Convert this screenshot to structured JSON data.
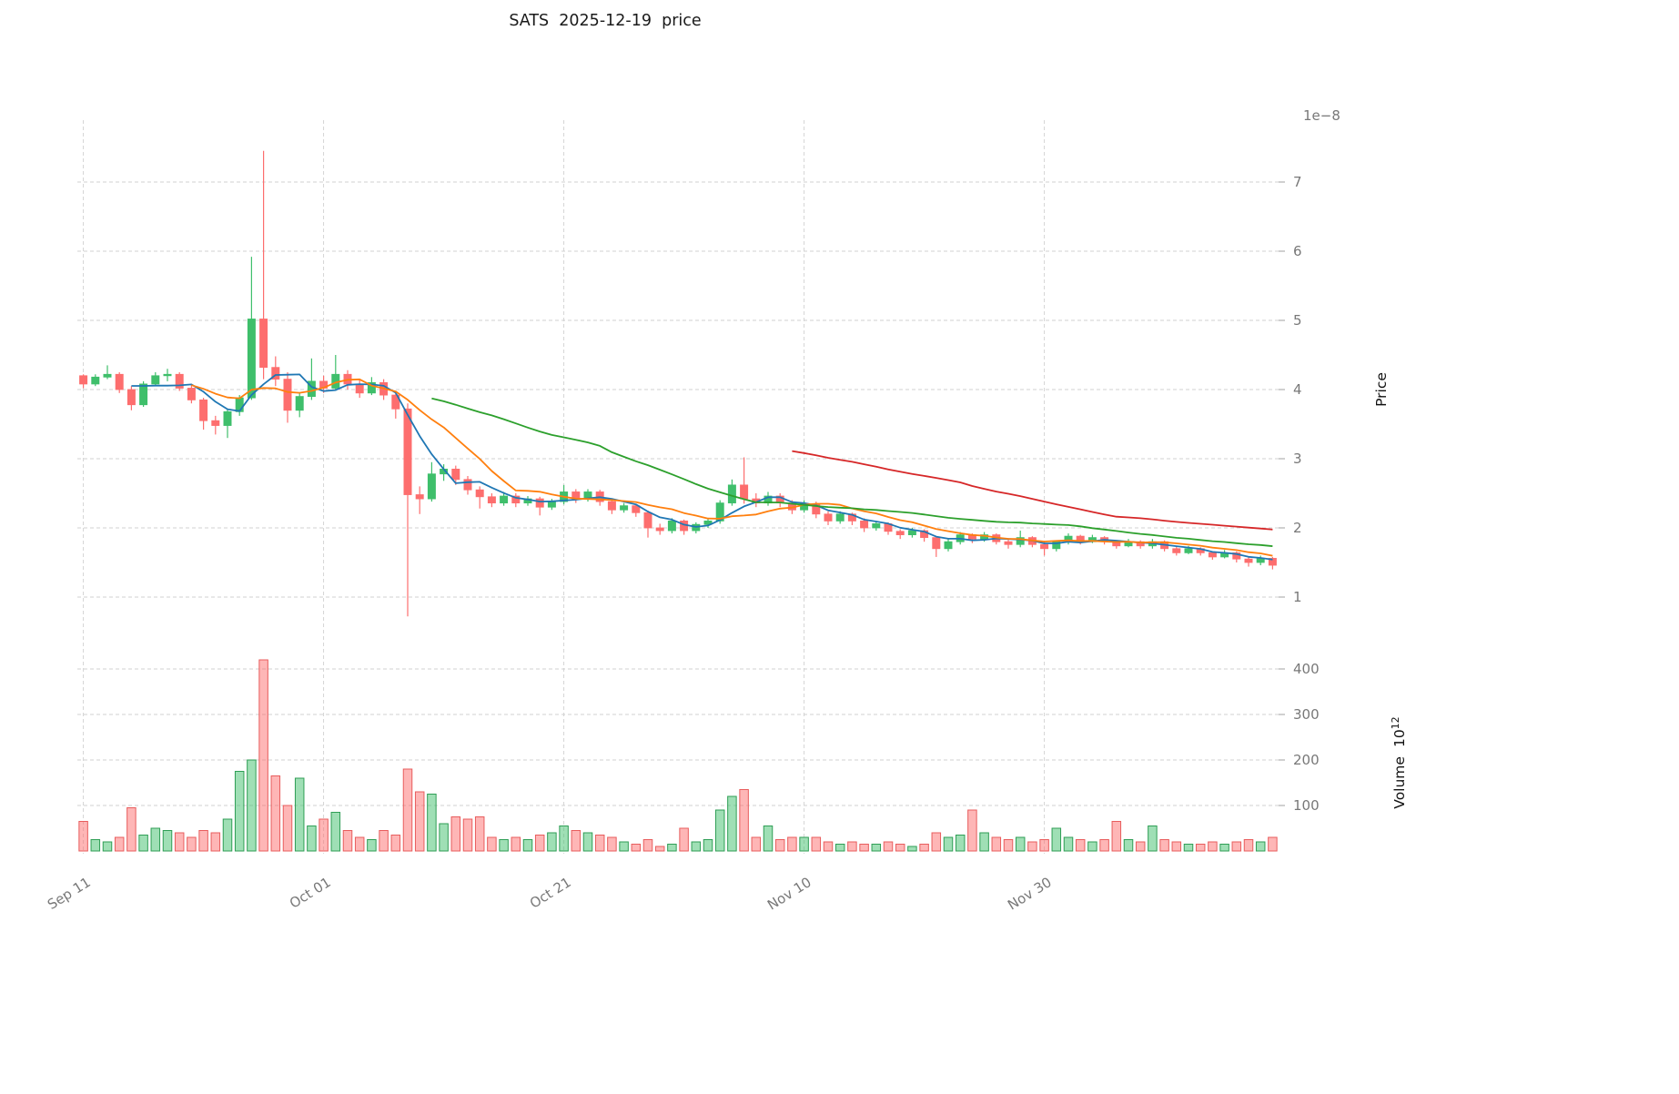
{
  "chart_data": {
    "type": "candlestick",
    "title": "SATS  2025-12-19  price",
    "price_axis": {
      "label": "Price",
      "offset_text": "1e−8",
      "scale": "1e-8",
      "ticks": [
        1,
        2,
        3,
        4,
        5,
        6,
        7
      ]
    },
    "volume_axis": {
      "label": "Volume",
      "unit_base": "10",
      "unit_exponent": "12",
      "ticks": [
        100,
        200,
        300,
        400
      ]
    },
    "x_ticks": [
      {
        "label": "Sep 11",
        "index": 0
      },
      {
        "label": "Oct 01",
        "index": 20
      },
      {
        "label": "Oct 21",
        "index": 40
      },
      {
        "label": "Nov 10",
        "index": 60
      },
      {
        "label": "Nov 30",
        "index": 80
      }
    ],
    "moving_averages": [
      {
        "name": "MA5",
        "window": 5,
        "color": "#1f77b4"
      },
      {
        "name": "MA10",
        "window": 10,
        "color": "#ff7f0e"
      },
      {
        "name": "MA30",
        "window": 30,
        "color": "#2ca02c"
      },
      {
        "name": "MA60",
        "window": 60,
        "color": "#d62728"
      }
    ],
    "style": {
      "up": "#3fbf6b",
      "down": "#fd6e6e",
      "up_edge": "#2f9e55",
      "down_edge": "#e85d5d",
      "grid": "#d0d0d0"
    },
    "columns": [
      "date",
      "open",
      "high",
      "low",
      "close",
      "volume"
    ],
    "candles": [
      [
        "2025-09-11",
        4.2,
        4.22,
        4.02,
        4.08,
        65
      ],
      [
        "2025-09-12",
        4.08,
        4.22,
        4.05,
        4.18,
        25
      ],
      [
        "2025-09-13",
        4.18,
        4.35,
        4.15,
        4.22,
        20
      ],
      [
        "2025-09-14",
        4.22,
        4.25,
        3.95,
        4.0,
        30
      ],
      [
        "2025-09-15",
        4.0,
        4.05,
        3.7,
        3.78,
        95
      ],
      [
        "2025-09-16",
        3.78,
        4.12,
        3.75,
        4.08,
        35
      ],
      [
        "2025-09-17",
        4.08,
        4.25,
        4.05,
        4.2,
        50
      ],
      [
        "2025-09-18",
        4.2,
        4.3,
        4.12,
        4.22,
        45
      ],
      [
        "2025-09-19",
        4.22,
        4.25,
        3.98,
        4.02,
        40
      ],
      [
        "2025-09-20",
        4.02,
        4.08,
        3.8,
        3.85,
        30
      ],
      [
        "2025-09-21",
        3.85,
        3.88,
        3.42,
        3.55,
        45
      ],
      [
        "2025-09-22",
        3.55,
        3.62,
        3.35,
        3.48,
        40
      ],
      [
        "2025-09-23",
        3.48,
        3.72,
        3.3,
        3.68,
        70
      ],
      [
        "2025-09-24",
        3.68,
        3.92,
        3.62,
        3.88,
        175
      ],
      [
        "2025-09-25",
        3.88,
        5.92,
        3.85,
        5.02,
        200
      ],
      [
        "2025-09-26",
        5.02,
        7.45,
        4.15,
        4.32,
        420
      ],
      [
        "2025-09-27",
        4.32,
        4.48,
        4.05,
        4.15,
        165
      ],
      [
        "2025-09-28",
        4.15,
        4.25,
        3.52,
        3.7,
        100
      ],
      [
        "2025-09-29",
        3.7,
        3.95,
        3.6,
        3.9,
        160
      ],
      [
        "2025-09-30",
        3.9,
        4.45,
        3.85,
        4.12,
        55
      ],
      [
        "2025-10-01",
        4.12,
        4.2,
        3.95,
        4.02,
        70
      ],
      [
        "2025-10-02",
        4.02,
        4.5,
        3.98,
        4.22,
        85
      ],
      [
        "2025-10-03",
        4.22,
        4.28,
        4.0,
        4.08,
        45
      ],
      [
        "2025-10-04",
        4.08,
        4.15,
        3.88,
        3.95,
        30
      ],
      [
        "2025-10-05",
        3.95,
        4.18,
        3.92,
        4.1,
        25
      ],
      [
        "2025-10-06",
        4.1,
        4.15,
        3.85,
        3.92,
        45
      ],
      [
        "2025-10-07",
        3.92,
        3.98,
        3.58,
        3.72,
        35
      ],
      [
        "2025-10-08",
        3.72,
        3.8,
        0.72,
        2.48,
        180
      ],
      [
        "2025-10-09",
        2.48,
        2.6,
        2.2,
        2.42,
        130
      ],
      [
        "2025-10-10",
        2.42,
        2.95,
        2.38,
        2.78,
        125
      ],
      [
        "2025-10-11",
        2.78,
        2.92,
        2.68,
        2.85,
        60
      ],
      [
        "2025-10-12",
        2.85,
        2.9,
        2.62,
        2.7,
        75
      ],
      [
        "2025-10-13",
        2.7,
        2.75,
        2.48,
        2.55,
        70
      ],
      [
        "2025-10-14",
        2.55,
        2.6,
        2.28,
        2.45,
        75
      ],
      [
        "2025-10-15",
        2.45,
        2.5,
        2.3,
        2.36,
        30
      ],
      [
        "2025-10-16",
        2.36,
        2.52,
        2.32,
        2.46,
        25
      ],
      [
        "2025-10-17",
        2.46,
        2.5,
        2.3,
        2.36,
        30
      ],
      [
        "2025-10-18",
        2.36,
        2.46,
        2.32,
        2.42,
        25
      ],
      [
        "2025-10-19",
        2.42,
        2.45,
        2.18,
        2.3,
        35
      ],
      [
        "2025-10-20",
        2.3,
        2.42,
        2.26,
        2.38,
        40
      ],
      [
        "2025-10-21",
        2.38,
        2.62,
        2.34,
        2.52,
        55
      ],
      [
        "2025-10-22",
        2.52,
        2.56,
        2.36,
        2.42,
        45
      ],
      [
        "2025-10-23",
        2.42,
        2.56,
        2.38,
        2.52,
        40
      ],
      [
        "2025-10-24",
        2.52,
        2.55,
        2.32,
        2.38,
        35
      ],
      [
        "2025-10-25",
        2.38,
        2.42,
        2.2,
        2.26,
        30
      ],
      [
        "2025-10-26",
        2.26,
        2.36,
        2.22,
        2.32,
        20
      ],
      [
        "2025-10-27",
        2.32,
        2.35,
        2.16,
        2.22,
        15
      ],
      [
        "2025-10-28",
        2.22,
        2.25,
        1.86,
        2.0,
        25
      ],
      [
        "2025-10-29",
        2.0,
        2.06,
        1.9,
        1.96,
        10
      ],
      [
        "2025-10-30",
        1.96,
        2.14,
        1.92,
        2.1,
        15
      ],
      [
        "2025-10-31",
        2.1,
        2.12,
        1.9,
        1.96,
        50
      ],
      [
        "2025-11-01",
        1.96,
        2.08,
        1.92,
        2.05,
        20
      ],
      [
        "2025-11-02",
        2.05,
        2.14,
        2.0,
        2.1,
        25
      ],
      [
        "2025-11-03",
        2.1,
        2.4,
        2.06,
        2.36,
        90
      ],
      [
        "2025-11-04",
        2.36,
        2.7,
        2.32,
        2.62,
        120
      ],
      [
        "2025-11-05",
        2.62,
        3.02,
        2.35,
        2.42,
        135
      ],
      [
        "2025-11-06",
        2.42,
        2.5,
        2.3,
        2.36,
        30
      ],
      [
        "2025-11-07",
        2.36,
        2.52,
        2.32,
        2.46,
        55
      ],
      [
        "2025-11-08",
        2.46,
        2.5,
        2.3,
        2.36,
        25
      ],
      [
        "2025-11-09",
        2.36,
        2.4,
        2.2,
        2.26,
        30
      ],
      [
        "2025-11-10",
        2.26,
        2.4,
        2.22,
        2.35,
        30
      ],
      [
        "2025-11-11",
        2.35,
        2.38,
        2.14,
        2.2,
        30
      ],
      [
        "2025-11-12",
        2.2,
        2.24,
        2.04,
        2.1,
        20
      ],
      [
        "2025-11-13",
        2.1,
        2.24,
        2.06,
        2.2,
        15
      ],
      [
        "2025-11-14",
        2.2,
        2.22,
        2.04,
        2.1,
        20
      ],
      [
        "2025-11-15",
        2.1,
        2.14,
        1.94,
        2.0,
        15
      ],
      [
        "2025-11-16",
        2.0,
        2.1,
        1.96,
        2.06,
        15
      ],
      [
        "2025-11-17",
        2.06,
        2.08,
        1.9,
        1.95,
        20
      ],
      [
        "2025-11-18",
        1.95,
        1.98,
        1.84,
        1.9,
        15
      ],
      [
        "2025-11-19",
        1.9,
        2.0,
        1.86,
        1.96,
        10
      ],
      [
        "2025-11-20",
        1.96,
        1.98,
        1.8,
        1.86,
        15
      ],
      [
        "2025-11-21",
        1.86,
        1.88,
        1.58,
        1.7,
        40
      ],
      [
        "2025-11-22",
        1.7,
        1.84,
        1.66,
        1.8,
        30
      ],
      [
        "2025-11-23",
        1.8,
        1.94,
        1.76,
        1.9,
        35
      ],
      [
        "2025-11-24",
        1.9,
        1.92,
        1.78,
        1.84,
        90
      ],
      [
        "2025-11-25",
        1.84,
        1.94,
        1.8,
        1.9,
        40
      ],
      [
        "2025-11-26",
        1.9,
        1.92,
        1.76,
        1.8,
        30
      ],
      [
        "2025-11-27",
        1.8,
        1.84,
        1.7,
        1.76,
        25
      ],
      [
        "2025-11-28",
        1.76,
        1.96,
        1.72,
        1.86,
        30
      ],
      [
        "2025-11-29",
        1.86,
        1.88,
        1.72,
        1.76,
        20
      ],
      [
        "2025-11-30",
        1.76,
        1.8,
        1.6,
        1.7,
        25
      ],
      [
        "2025-12-01",
        1.7,
        1.82,
        1.66,
        1.8,
        50
      ],
      [
        "2025-12-02",
        1.8,
        1.92,
        1.76,
        1.88,
        30
      ],
      [
        "2025-12-03",
        1.88,
        1.9,
        1.76,
        1.8,
        25
      ],
      [
        "2025-12-04",
        1.8,
        1.9,
        1.78,
        1.86,
        20
      ],
      [
        "2025-12-05",
        1.86,
        1.88,
        1.76,
        1.8,
        25
      ],
      [
        "2025-12-06",
        1.8,
        1.82,
        1.7,
        1.74,
        65
      ],
      [
        "2025-12-07",
        1.74,
        1.84,
        1.72,
        1.8,
        25
      ],
      [
        "2025-12-08",
        1.8,
        1.82,
        1.7,
        1.74,
        20
      ],
      [
        "2025-12-09",
        1.74,
        1.84,
        1.7,
        1.8,
        55
      ],
      [
        "2025-12-10",
        1.8,
        1.82,
        1.66,
        1.7,
        25
      ],
      [
        "2025-12-11",
        1.7,
        1.74,
        1.6,
        1.64,
        20
      ],
      [
        "2025-12-12",
        1.64,
        1.74,
        1.62,
        1.7,
        15
      ],
      [
        "2025-12-13",
        1.7,
        1.72,
        1.6,
        1.64,
        15
      ],
      [
        "2025-12-14",
        1.64,
        1.66,
        1.54,
        1.58,
        20
      ],
      [
        "2025-12-15",
        1.58,
        1.68,
        1.56,
        1.64,
        15
      ],
      [
        "2025-12-16",
        1.64,
        1.66,
        1.5,
        1.55,
        20
      ],
      [
        "2025-12-17",
        1.55,
        1.58,
        1.44,
        1.5,
        25
      ],
      [
        "2025-12-18",
        1.5,
        1.6,
        1.46,
        1.56,
        20
      ],
      [
        "2025-12-19",
        1.56,
        1.58,
        1.4,
        1.46,
        30
      ]
    ]
  }
}
